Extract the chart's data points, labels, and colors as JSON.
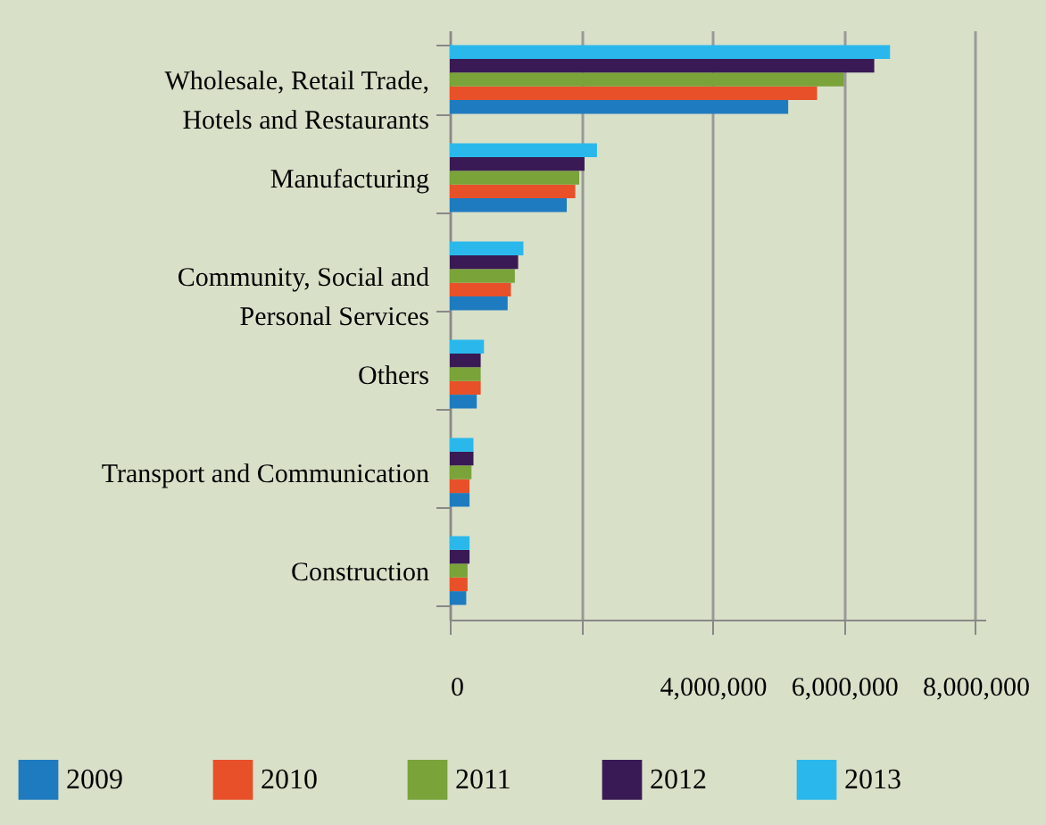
{
  "chart_data": {
    "type": "bar",
    "orientation": "horizontal",
    "categories": [
      "Wholesale, Retail Trade, Hotels and Restaurants",
      "Manufacturing",
      "Community, Social and Personal Services",
      "Others",
      "Transport and Communication",
      "Construction"
    ],
    "series": [
      {
        "name": "2009",
        "color": "#1f7bbf",
        "values": [
          5150000,
          1780000,
          880000,
          410000,
          300000,
          250000
        ]
      },
      {
        "name": "2010",
        "color": "#e8502a",
        "values": [
          5590000,
          1910000,
          930000,
          470000,
          300000,
          270000
        ]
      },
      {
        "name": "2011",
        "color": "#7aa33a",
        "values": [
          6000000,
          1970000,
          990000,
          470000,
          330000,
          270000
        ]
      },
      {
        "name": "2012",
        "color": "#3a1a55",
        "values": [
          6460000,
          2050000,
          1040000,
          470000,
          360000,
          300000
        ]
      },
      {
        "name": "2013",
        "color": "#2ab8ec",
        "values": [
          6700000,
          2240000,
          1120000,
          520000,
          360000,
          300000
        ]
      }
    ],
    "xlim": [
      0,
      8150000
    ],
    "xticks": [
      {
        "value": 0,
        "label": "0"
      },
      {
        "value": 2000000,
        "label": null
      },
      {
        "value": 4000000,
        "label": "4,000,000"
      },
      {
        "value": 6000000,
        "label": "6,000,000"
      },
      {
        "value": 8000000,
        "label": "8,000,000"
      }
    ],
    "grid": "x",
    "legend": "bottom"
  }
}
